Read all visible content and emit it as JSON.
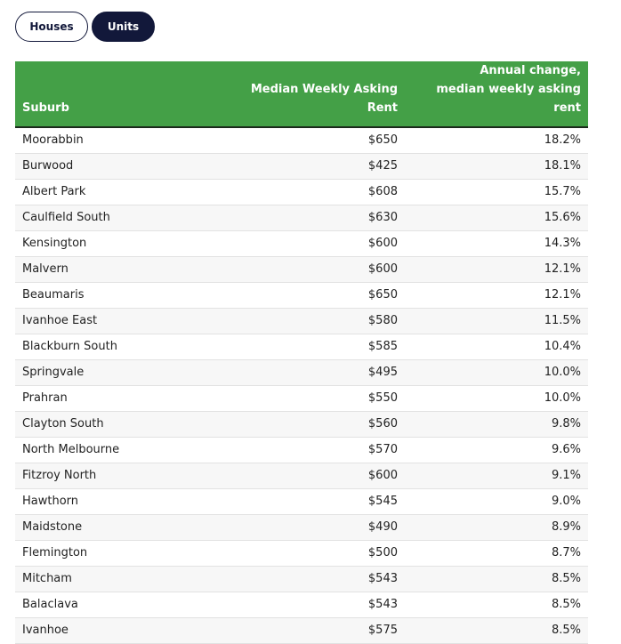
{
  "buttons": [
    "Houses",
    "Units"
  ],
  "table": {
    "header": [
      "Suburb",
      "Median Weekly Asking Rent",
      "Annual change, median weekly asking rent"
    ],
    "rows": [
      [
        "Moorabbin",
        "$650",
        "18.2%"
      ],
      [
        "Burwood",
        "$425",
        "18.1%"
      ],
      [
        "Albert Park",
        "$608",
        "15.7%"
      ],
      [
        "Caulfield South",
        "$630",
        "15.6%"
      ],
      [
        "Kensington",
        "$600",
        "14.3%"
      ],
      [
        "Malvern",
        "$600",
        "12.1%"
      ],
      [
        "Beaumaris",
        "$650",
        "12.1%"
      ],
      [
        "Ivanhoe East",
        "$580",
        "11.5%"
      ],
      [
        "Blackburn South",
        "$585",
        "10.4%"
      ],
      [
        "Springvale",
        "$495",
        "10.0%"
      ],
      [
        "Prahran",
        "$550",
        "10.0%"
      ],
      [
        "Clayton South",
        "$560",
        "9.8%"
      ],
      [
        "North Melbourne",
        "$570",
        "9.6%"
      ],
      [
        "Fitzroy North",
        "$600",
        "9.1%"
      ],
      [
        "Hawthorn",
        "$545",
        "9.0%"
      ],
      [
        "Maidstone",
        "$490",
        "8.9%"
      ],
      [
        "Flemington",
        "$500",
        "8.7%"
      ],
      [
        "Mitcham",
        "$543",
        "8.5%"
      ],
      [
        "Balaclava",
        "$543",
        "8.5%"
      ],
      [
        "Ivanhoe",
        "$575",
        "8.5%"
      ]
    ]
  }
}
